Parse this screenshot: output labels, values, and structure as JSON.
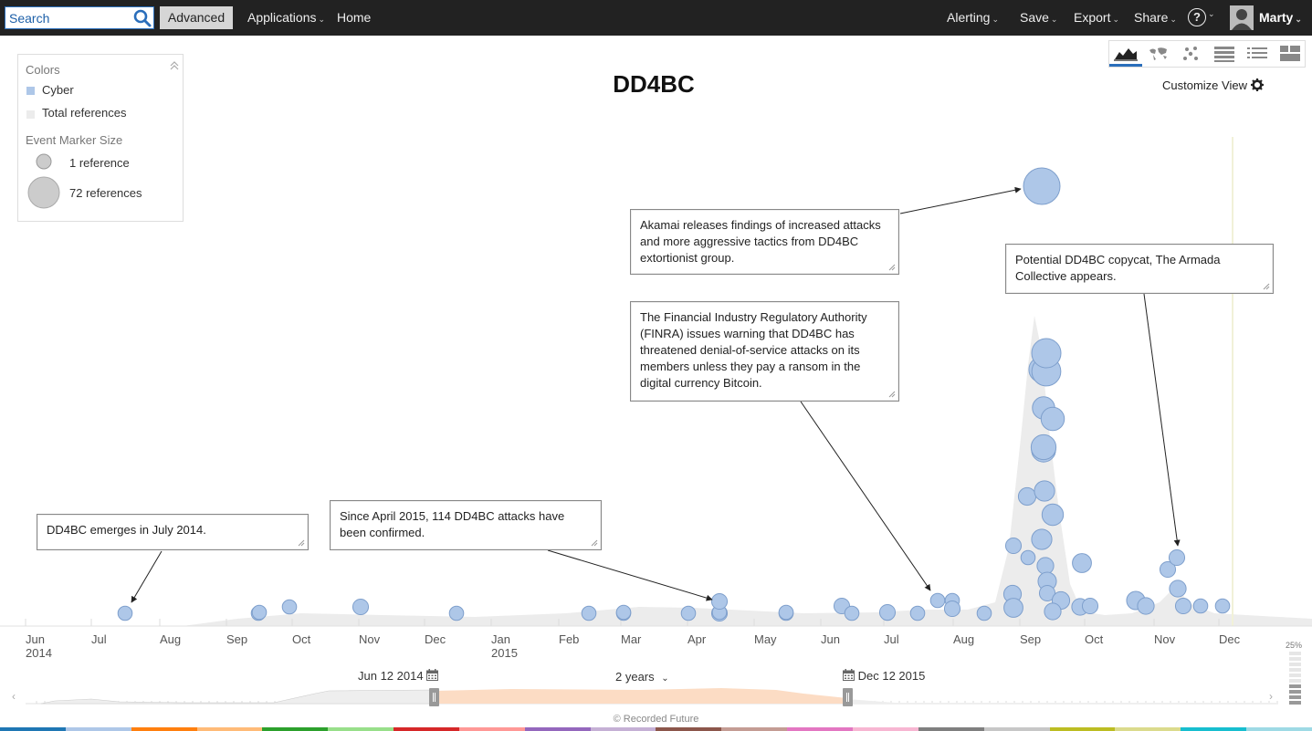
{
  "nav": {
    "search_placeholder": "Search",
    "advanced_label": "Advanced",
    "applications_label": "Applications",
    "home_label": "Home",
    "alerting_label": "Alerting",
    "save_label": "Save",
    "export_label": "Export",
    "share_label": "Share",
    "help_label": "?",
    "user_name": "Marty",
    "caret": "⌄"
  },
  "legend": {
    "colors_title": "Colors",
    "items": [
      {
        "label": "Cyber",
        "color": "#aec7e8"
      },
      {
        "label": "Total references",
        "color": "#ececec"
      }
    ],
    "marker_title": "Event Marker Size",
    "small_label": "1 reference",
    "large_label": "72 references"
  },
  "title": "DD4BC",
  "customize_label": "Customize View",
  "annotations": [
    {
      "text": "Akamai releases findings of increased attacks and more aggressive tactics from DD4BC extortionist group."
    },
    {
      "text": "Potential DD4BC copycat, The Armada Collective appears."
    },
    {
      "text": "The Financial Industry Regulatory Authority (FINRA) issues warning that DD4BC has threatened denial-of-service attacks on its members unless they pay a ransom in the digital currency Bitcoin."
    },
    {
      "text": "Since April 2015, 114 DD4BC attacks have been confirmed."
    },
    {
      "text": "DD4BC emerges in July 2014."
    }
  ],
  "axis": {
    "months": [
      {
        "label": "Jun",
        "year": "2014"
      },
      {
        "label": "Jul",
        "year": ""
      },
      {
        "label": "Aug",
        "year": ""
      },
      {
        "label": "Sep",
        "year": ""
      },
      {
        "label": "Oct",
        "year": ""
      },
      {
        "label": "Nov",
        "year": ""
      },
      {
        "label": "Dec",
        "year": ""
      },
      {
        "label": "Jan",
        "year": "2015"
      },
      {
        "label": "Feb",
        "year": ""
      },
      {
        "label": "Mar",
        "year": ""
      },
      {
        "label": "Apr",
        "year": ""
      },
      {
        "label": "May",
        "year": ""
      },
      {
        "label": "Jun",
        "year": ""
      },
      {
        "label": "Jul",
        "year": ""
      },
      {
        "label": "Aug",
        "year": ""
      },
      {
        "label": "Sep",
        "year": ""
      },
      {
        "label": "Oct",
        "year": ""
      },
      {
        "label": "Nov",
        "year": ""
      },
      {
        "label": "Dec",
        "year": ""
      }
    ]
  },
  "range": {
    "start_label": "Jun 12 2014",
    "span_label": "2 years",
    "end_label": "Dec 12 2015"
  },
  "zoom_label": "25%",
  "footer": "© Recorded Future",
  "colors": {
    "marker_fill": "#aec7e8",
    "marker_stroke": "#7e9fcc",
    "reference_area": "#ececec",
    "accent": "#2a6ebb"
  },
  "event_marker_sizes": [
    1,
    1,
    1,
    1,
    2,
    1,
    1,
    1,
    1,
    1,
    2,
    1,
    2,
    1,
    1,
    2,
    1,
    1,
    2,
    1,
    1,
    1,
    2,
    1,
    2,
    1,
    4,
    8,
    10,
    12,
    14,
    16,
    18,
    20,
    30,
    45,
    72,
    4,
    6,
    3,
    5,
    2,
    8,
    4,
    3,
    6,
    3,
    2,
    2,
    5,
    3,
    2,
    2,
    3,
    2,
    1,
    1
  ]
}
